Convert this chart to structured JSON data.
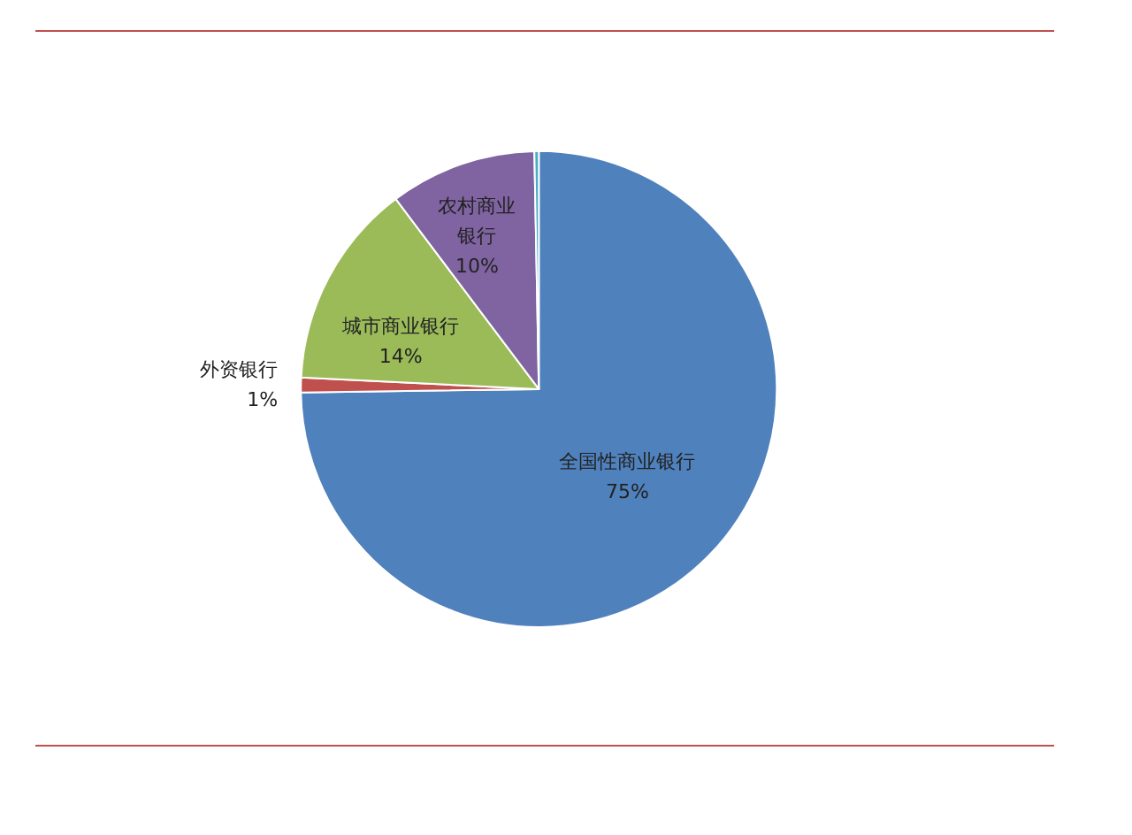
{
  "chart_data": {
    "type": "pie",
    "categories": [
      "全国性商业银行",
      "外资银行",
      "城市商业银行",
      "农村商业银行",
      null
    ],
    "values": [
      75,
      1,
      14,
      10,
      0.3
    ],
    "colors": [
      "#4f81bd",
      "#c0504d",
      "#9bbb59",
      "#8064a2",
      "#4bacc6"
    ],
    "value_labels": [
      "75%",
      "1%",
      "14%",
      "10%",
      null
    ]
  }
}
